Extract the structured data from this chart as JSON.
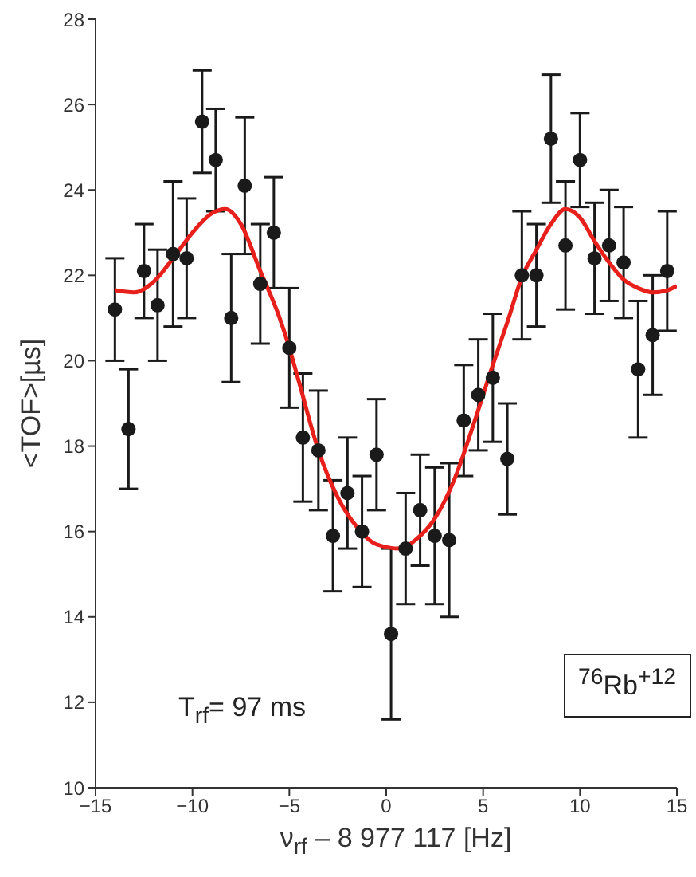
{
  "chart_data": {
    "type": "scatter",
    "xlabel": "ν$_{rf}$ – 8 977 117 [Hz]",
    "ylabel": "<TOF>[µs]",
    "xlim": [
      -15,
      15
    ],
    "xticks": [
      -15,
      -10,
      -5,
      0,
      5,
      10,
      15
    ],
    "ylim": [
      10,
      28
    ],
    "yticks": [
      10,
      12,
      14,
      16,
      18,
      20,
      22,
      24,
      26,
      28
    ],
    "grid": false,
    "marker": "circle",
    "annotations": [
      "T$_{rf}$= 97 ms",
      "$^{76}$Rb$^{+12}$"
    ],
    "series": [
      {
        "color": "#1a1a1a",
        "x": [
          -14.0,
          -13.3,
          -12.5,
          -11.8,
          -11.0,
          -10.3,
          -9.5,
          -8.8,
          -8.0,
          -7.3,
          -6.5,
          -5.8,
          -5.0,
          -4.3,
          -3.5,
          -2.75,
          -2.0,
          -1.25,
          -0.5,
          0.25,
          1.0,
          1.75,
          2.5,
          3.25,
          4.0,
          4.75,
          5.5,
          6.25,
          7.0,
          7.75,
          8.5,
          9.25,
          10.0,
          10.75,
          11.5,
          12.25,
          13.0,
          13.75,
          14.5
        ],
        "values": [
          21.2,
          18.4,
          22.1,
          21.3,
          22.5,
          22.4,
          25.6,
          24.7,
          21.0,
          24.1,
          21.8,
          23.0,
          20.3,
          18.2,
          17.9,
          15.9,
          16.9,
          16.0,
          17.8,
          13.6,
          15.6,
          16.5,
          15.9,
          15.8,
          18.6,
          19.2,
          19.6,
          17.7,
          22.0,
          22.0,
          25.2,
          22.7,
          24.7,
          22.4,
          22.7,
          22.3,
          19.8,
          20.6,
          22.1
        ],
        "errors": [
          1.2,
          1.4,
          1.1,
          1.3,
          1.7,
          1.4,
          1.2,
          1.2,
          1.5,
          1.6,
          1.4,
          1.3,
          1.4,
          1.5,
          1.4,
          1.3,
          1.3,
          1.3,
          1.3,
          2.0,
          1.3,
          1.3,
          1.6,
          1.8,
          1.3,
          1.3,
          1.5,
          1.3,
          1.5,
          1.2,
          1.5,
          1.5,
          1.1,
          1.3,
          1.3,
          1.3,
          1.6,
          1.4,
          1.4
        ]
      },
      {
        "type": "line",
        "color": "#e8201c",
        "line_style": "solid",
        "marker": "none",
        "x": [
          -14,
          -13,
          -12,
          -11,
          -10,
          -9,
          -8.3,
          -7.5,
          -6.5,
          -5.5,
          -5,
          -4.5,
          -3.5,
          -2.5,
          -1.5,
          -0.5,
          0.75,
          1.5,
          2.5,
          3.5,
          4.5,
          5.5,
          6.25,
          7,
          7.75,
          8.5,
          9.25,
          10,
          10.75,
          11.5,
          12.25,
          13,
          13.75,
          14.5,
          15
        ],
        "values": [
          21.65,
          21.6,
          21.85,
          22.4,
          23.0,
          23.45,
          23.55,
          23.2,
          22.1,
          21.0,
          20.3,
          19.5,
          17.9,
          16.8,
          16.1,
          15.7,
          15.6,
          15.8,
          16.3,
          17.2,
          18.5,
          19.9,
          20.9,
          21.95,
          22.6,
          23.2,
          23.55,
          23.35,
          22.8,
          22.3,
          21.9,
          21.7,
          21.6,
          21.65,
          21.75
        ]
      }
    ]
  }
}
